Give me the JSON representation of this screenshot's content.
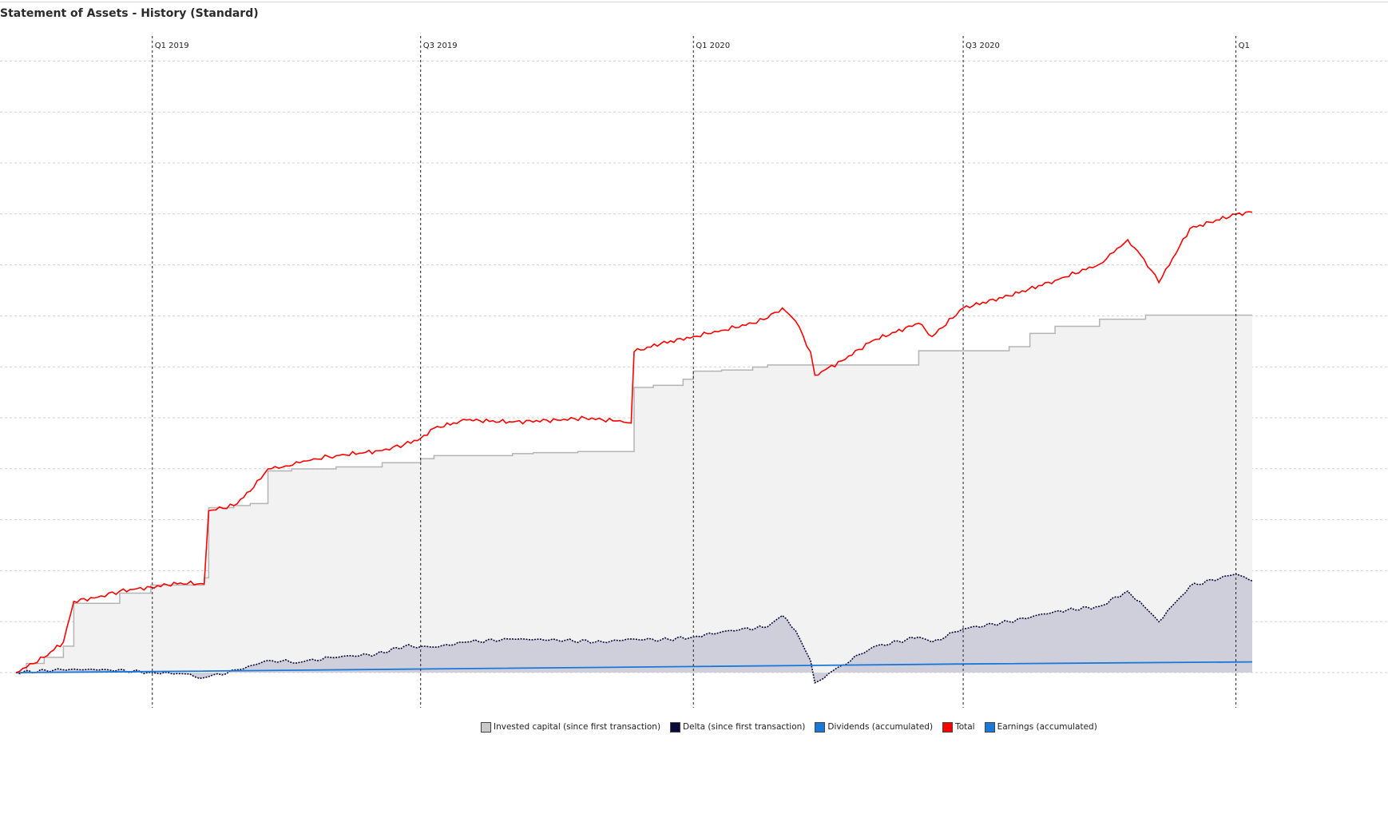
{
  "title": "Statement of Assets - History (Standard)",
  "chart_data": {
    "type": "area",
    "title": "Statement of Assets - History (Standard)",
    "xlabel": "",
    "ylabel": "",
    "xlim": [
      "2018-10-01",
      "2021-01-12"
    ],
    "grid": true,
    "legend_position": "bottom",
    "quarter_labels": [
      "Q1 2019",
      "Q3 2019",
      "Q1 2020",
      "Q3 2020",
      "Q1"
    ],
    "series": [
      {
        "name": "Invested capital (since first transaction)",
        "color": "#c9c9c9",
        "style": "step-area",
        "x": [
          "2018-10-01",
          "2018-10-08",
          "2018-10-20",
          "2018-11-02",
          "2018-11-09",
          "2018-11-25",
          "2018-12-10",
          "2018-12-31",
          "2019-01-20",
          "2019-02-05",
          "2019-02-08",
          "2019-02-25",
          "2019-03-08",
          "2019-03-20",
          "2019-04-05",
          "2019-05-05",
          "2019-06-05",
          "2019-07-01",
          "2019-07-10",
          "2019-09-01",
          "2019-09-15",
          "2019-10-15",
          "2019-11-20",
          "2019-11-22",
          "2019-12-05",
          "2019-12-25",
          "2020-01-01",
          "2020-01-20",
          "2020-02-10",
          "2020-02-20",
          "2020-04-01",
          "2020-05-25",
          "2020-06-01",
          "2020-07-01",
          "2020-07-15",
          "2020-08-01",
          "2020-08-15",
          "2020-09-01",
          "2020-10-01",
          "2020-11-01",
          "2021-01-12"
        ],
        "values": [
          0,
          0.9,
          1.5,
          2.6,
          6.8,
          6.8,
          7.8,
          8.6,
          8.6,
          9.3,
          16.2,
          16.4,
          16.6,
          19.8,
          20.0,
          20.2,
          20.6,
          21.0,
          21.3,
          21.5,
          21.6,
          21.7,
          21.7,
          28.0,
          28.2,
          28.8,
          29.6,
          29.7,
          30.0,
          30.2,
          30.2,
          30.2,
          31.6,
          31.6,
          31.6,
          32.0,
          33.3,
          34.0,
          34.7,
          35.1,
          35.1
        ]
      },
      {
        "name": "Delta (since first transaction)",
        "color": "#0a0a3c",
        "style": "dotted-area",
        "x": [
          "2018-10-01",
          "2018-11-01",
          "2018-12-01",
          "2019-01-01",
          "2019-01-20",
          "2019-02-05",
          "2019-03-01",
          "2019-03-20",
          "2019-04-10",
          "2019-05-01",
          "2019-06-01",
          "2019-06-20",
          "2019-07-10",
          "2019-08-01",
          "2019-09-01",
          "2019-10-01",
          "2019-11-01",
          "2019-11-20",
          "2019-12-10",
          "2020-01-01",
          "2020-01-20",
          "2020-02-01",
          "2020-02-20",
          "2020-03-01",
          "2020-03-10",
          "2020-03-20",
          "2020-03-23",
          "2020-04-10",
          "2020-05-01",
          "2020-06-01",
          "2020-06-10",
          "2020-07-01",
          "2020-08-01",
          "2020-09-01",
          "2020-10-01",
          "2020-10-20",
          "2020-10-31",
          "2020-11-10",
          "2020-12-01",
          "2021-01-01",
          "2021-01-12"
        ],
        "values": [
          0,
          0.3,
          0.3,
          0,
          -0.1,
          -0.5,
          0.3,
          1.2,
          1.0,
          1.5,
          1.8,
          2.6,
          2.5,
          3.0,
          3.3,
          3.2,
          3.0,
          3.3,
          3.2,
          3.5,
          4.0,
          4.2,
          4.5,
          5.6,
          4.1,
          1.2,
          -1.0,
          0.7,
          2.5,
          3.5,
          3.0,
          4.3,
          5.0,
          6.0,
          6.5,
          8.0,
          6.5,
          5.0,
          8.5,
          9.7,
          9.0
        ]
      },
      {
        "name": "Dividends (accumulated)",
        "color": "#1a78d8",
        "style": "line",
        "x": [
          "2018-10-01",
          "2019-01-01",
          "2019-07-01",
          "2020-01-01",
          "2020-07-01",
          "2021-01-12"
        ],
        "values": [
          0,
          0.1,
          0.35,
          0.6,
          0.85,
          1.05
        ]
      },
      {
        "name": "Total",
        "color": "#ff0000",
        "style": "line",
        "x": [
          "2018-10-01",
          "2018-10-20",
          "2018-11-02",
          "2018-11-09",
          "2018-11-25",
          "2018-12-10",
          "2018-12-31",
          "2019-01-20",
          "2019-02-05",
          "2019-02-08",
          "2019-02-25",
          "2019-03-08",
          "2019-03-20",
          "2019-04-01",
          "2019-04-20",
          "2019-05-05",
          "2019-06-05",
          "2019-06-20",
          "2019-07-01",
          "2019-07-10",
          "2019-08-01",
          "2019-09-01",
          "2019-10-01",
          "2019-10-20",
          "2019-11-10",
          "2019-11-20",
          "2019-11-22",
          "2019-12-10",
          "2020-01-01",
          "2020-01-20",
          "2020-02-10",
          "2020-02-20",
          "2020-03-01",
          "2020-03-10",
          "2020-03-20",
          "2020-03-23",
          "2020-04-10",
          "2020-05-01",
          "2020-06-01",
          "2020-06-10",
          "2020-07-01",
          "2020-08-01",
          "2020-09-01",
          "2020-10-01",
          "2020-10-20",
          "2020-10-31",
          "2020-11-10",
          "2020-12-01",
          "2021-01-01",
          "2021-01-12"
        ],
        "values": [
          0,
          1.5,
          3.0,
          7.0,
          7.4,
          8.0,
          8.4,
          8.8,
          8.7,
          15.9,
          16.4,
          17.8,
          20.0,
          20.3,
          21.0,
          21.3,
          21.8,
          22.4,
          23.0,
          24.0,
          24.8,
          24.6,
          24.8,
          25.0,
          24.7,
          24.5,
          31.5,
          32.3,
          33.0,
          33.6,
          34.3,
          34.8,
          35.8,
          34.5,
          31.5,
          29.2,
          30.6,
          32.6,
          34.3,
          33.0,
          35.8,
          37.0,
          38.5,
          40.1,
          42.5,
          40.6,
          38.3,
          43.6,
          45.0,
          45.2
        ]
      },
      {
        "name": "Earnings (accumulated)",
        "color": "#1a78d8",
        "style": "line",
        "x": [],
        "values": []
      }
    ]
  },
  "legend": [
    {
      "label": "Invested capital (since first transaction)",
      "color": "#c9c9c9"
    },
    {
      "label": "Delta (since first transaction)",
      "color": "#0a0a3c"
    },
    {
      "label": "Dividends (accumulated)",
      "color": "#1a78d8"
    },
    {
      "label": "Total",
      "color": "#ff0000"
    },
    {
      "label": "Earnings (accumulated)",
      "color": "#1a78d8"
    }
  ]
}
